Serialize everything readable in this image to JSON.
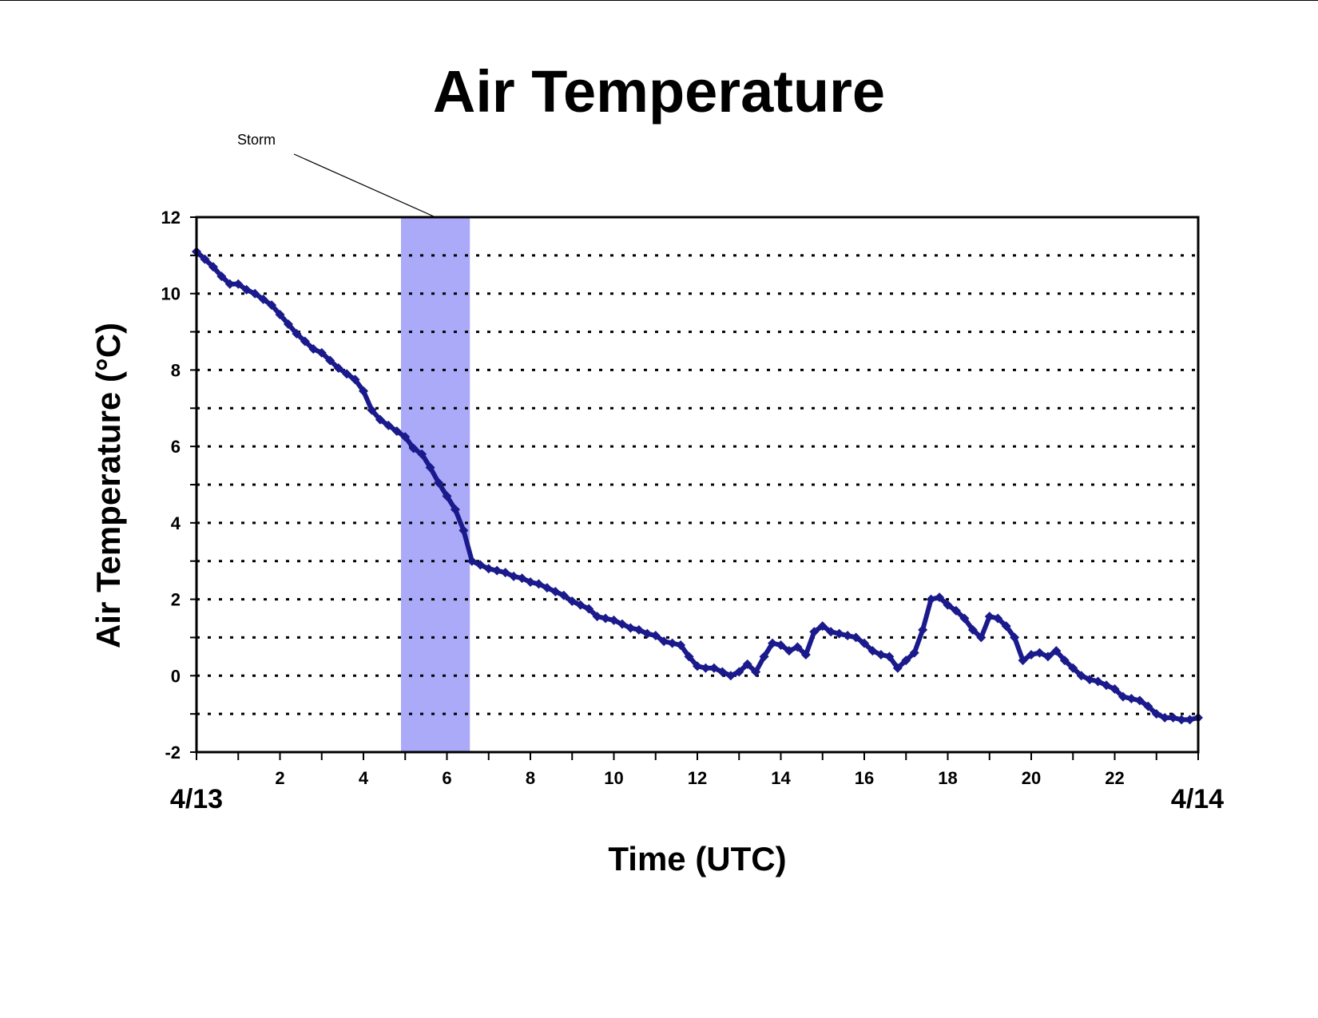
{
  "chart_data": {
    "type": "line",
    "title": "Air Temperature",
    "xlabel": "Time (UTC)",
    "ylabel": "Air Temperature (°C)",
    "xlim": [
      0,
      24
    ],
    "ylim": [
      -2,
      12
    ],
    "x_ticks": [
      2,
      4,
      6,
      8,
      10,
      12,
      14,
      16,
      18,
      20,
      22
    ],
    "x_minor_step": 1,
    "y_ticks": [
      -2,
      0,
      2,
      4,
      6,
      8,
      10,
      12
    ],
    "y_gridlines": [
      -1,
      0,
      1,
      2,
      3,
      4,
      5,
      6,
      7,
      8,
      9,
      10,
      11
    ],
    "grid": "horizontal dotted",
    "start_date_label": "4/13",
    "end_date_label": "4/14",
    "colors": {
      "series": "#1a1a8c",
      "storm_band": "#aaaaf8"
    },
    "annotations": [
      {
        "text": "Storm",
        "type": "shaded-band",
        "x_start": 4.9,
        "x_end": 6.55
      }
    ],
    "series": [
      {
        "marker": "diamond",
        "x": [
          0.0,
          0.2,
          0.4,
          0.6,
          0.8,
          1.0,
          1.2,
          1.4,
          1.6,
          1.8,
          2.0,
          2.2,
          2.4,
          2.6,
          2.8,
          3.0,
          3.2,
          3.4,
          3.6,
          3.8,
          4.0,
          4.2,
          4.4,
          4.6,
          4.8,
          5.0,
          5.2,
          5.4,
          5.6,
          5.8,
          6.0,
          6.2,
          6.4,
          6.6,
          6.8,
          7.0,
          7.2,
          7.4,
          7.6,
          7.8,
          8.0,
          8.2,
          8.4,
          8.6,
          8.8,
          9.0,
          9.2,
          9.4,
          9.6,
          9.8,
          10.0,
          10.2,
          10.4,
          10.6,
          10.8,
          11.0,
          11.2,
          11.4,
          11.6,
          11.8,
          12.0,
          12.2,
          12.4,
          12.6,
          12.8,
          13.0,
          13.2,
          13.4,
          13.6,
          13.8,
          14.0,
          14.2,
          14.4,
          14.6,
          14.8,
          15.0,
          15.2,
          15.4,
          15.6,
          15.8,
          16.0,
          16.2,
          16.4,
          16.6,
          16.8,
          17.0,
          17.2,
          17.4,
          17.6,
          17.8,
          18.0,
          18.2,
          18.4,
          18.6,
          18.8,
          19.0,
          19.2,
          19.4,
          19.6,
          19.8,
          20.0,
          20.2,
          20.4,
          20.6,
          20.8,
          21.0,
          21.2,
          21.4,
          21.6,
          21.8,
          22.0,
          22.2,
          22.4,
          22.6,
          22.8,
          23.0,
          23.2,
          23.4,
          23.6,
          23.8,
          24.0
        ],
        "values": [
          11.1,
          10.9,
          10.7,
          10.45,
          10.25,
          10.25,
          10.1,
          10.0,
          9.85,
          9.7,
          9.45,
          9.2,
          8.95,
          8.75,
          8.55,
          8.45,
          8.25,
          8.05,
          7.9,
          7.75,
          7.45,
          6.95,
          6.7,
          6.55,
          6.4,
          6.25,
          5.95,
          5.8,
          5.45,
          5.05,
          4.7,
          4.35,
          3.8,
          3.0,
          2.9,
          2.8,
          2.75,
          2.7,
          2.6,
          2.55,
          2.45,
          2.4,
          2.3,
          2.2,
          2.1,
          1.95,
          1.85,
          1.75,
          1.55,
          1.5,
          1.45,
          1.35,
          1.25,
          1.2,
          1.1,
          1.05,
          0.9,
          0.85,
          0.8,
          0.5,
          0.25,
          0.2,
          0.2,
          0.1,
          0.0,
          0.1,
          0.3,
          0.1,
          0.5,
          0.85,
          0.8,
          0.65,
          0.75,
          0.55,
          1.15,
          1.3,
          1.15,
          1.1,
          1.05,
          1.0,
          0.85,
          0.65,
          0.55,
          0.5,
          0.2,
          0.4,
          0.6,
          1.2,
          2.0,
          2.05,
          1.85,
          1.7,
          1.5,
          1.2,
          1.0,
          1.55,
          1.5,
          1.3,
          1.0,
          0.4,
          0.55,
          0.6,
          0.5,
          0.65,
          0.4,
          0.2,
          0.0,
          -0.1,
          -0.15,
          -0.25,
          -0.35,
          -0.55,
          -0.6,
          -0.65,
          -0.8,
          -1.0,
          -1.1,
          -1.1,
          -1.15,
          -1.15,
          -1.1
        ]
      }
    ]
  }
}
